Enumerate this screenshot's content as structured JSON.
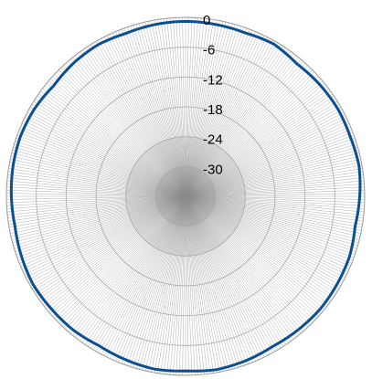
{
  "chart_data": {
    "type": "polar-line",
    "radial_axis": {
      "min": -36,
      "max": 0,
      "ticks": [
        0,
        -6,
        -12,
        -18,
        -24,
        -30
      ],
      "tick_labels": [
        "0",
        "-6",
        "-12",
        "-18",
        "-24",
        "-30"
      ]
    },
    "angular_axis": {
      "range_deg": [
        0,
        360
      ],
      "spoke_step_deg": 1,
      "zero_direction": "top",
      "direction": "clockwise"
    },
    "grid": true,
    "legend": "none",
    "series": [
      {
        "angles_deg": [
          0,
          10,
          20,
          30,
          40,
          50,
          60,
          70,
          80,
          90,
          100,
          110,
          120,
          130,
          140,
          150,
          160,
          170,
          180,
          190,
          200,
          210,
          220,
          230,
          240,
          250,
          260,
          270,
          280,
          290,
          300,
          310,
          320,
          330,
          340,
          350
        ],
        "values": [
          -0.8,
          -0.9,
          -1.0,
          -0.6,
          -1.2,
          -0.9,
          -0.7,
          -0.8,
          -0.6,
          -1.0,
          -1.4,
          -0.9,
          -0.8,
          -0.7,
          -0.9,
          -1.1,
          -0.8,
          -0.6,
          -0.9,
          -0.7,
          -1.0,
          -1.3,
          -0.9,
          -0.8,
          -0.6,
          -0.9,
          -1.2,
          -1.0,
          -0.8,
          -0.7,
          -0.9,
          -1.4,
          -1.0,
          -0.8,
          -1.1,
          -0.9
        ],
        "color": "#0a4f92"
      }
    ]
  }
}
